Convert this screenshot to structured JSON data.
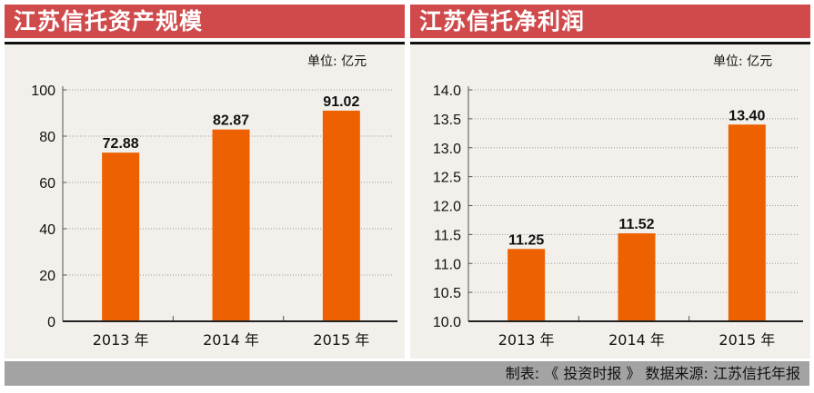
{
  "chart_data": [
    {
      "type": "bar",
      "title": "江苏信托资产规模",
      "unit": "单位: 亿元",
      "categories": [
        "2013 年",
        "2014 年",
        "2015 年"
      ],
      "values": [
        72.88,
        82.87,
        91.02
      ],
      "value_labels": [
        "72.88",
        "82.87",
        "91.02"
      ],
      "ylim": [
        0,
        100
      ],
      "yticks": [
        "0",
        "20",
        "40",
        "60",
        "80",
        "100"
      ],
      "ytick_values": [
        0,
        20,
        40,
        60,
        80,
        100
      ],
      "grid": true,
      "bar_color": "#ee6100"
    },
    {
      "type": "bar",
      "title": "江苏信托净利润",
      "unit": "单位: 亿元",
      "categories": [
        "2013 年",
        "2014 年",
        "2015 年"
      ],
      "values": [
        11.25,
        11.52,
        13.4
      ],
      "value_labels": [
        "11.25",
        "11.52",
        "13.40"
      ],
      "ylim": [
        10.0,
        14.0
      ],
      "yticks": [
        "10.0",
        "10.5",
        "11.0",
        "11.5",
        "12.0",
        "12.5",
        "13.0",
        "13.5",
        "14.0"
      ],
      "ytick_values": [
        10.0,
        10.5,
        11.0,
        11.5,
        12.0,
        12.5,
        13.0,
        13.5,
        14.0
      ],
      "grid": true,
      "bar_color": "#ee6100"
    }
  ],
  "colors": {
    "header": "#d04a4c",
    "panel_bg": "#f3f0eb",
    "footer_bg": "#a3a3a3"
  },
  "footer": "制表: 《 投资时报 》  数据来源: 江苏信托年报"
}
